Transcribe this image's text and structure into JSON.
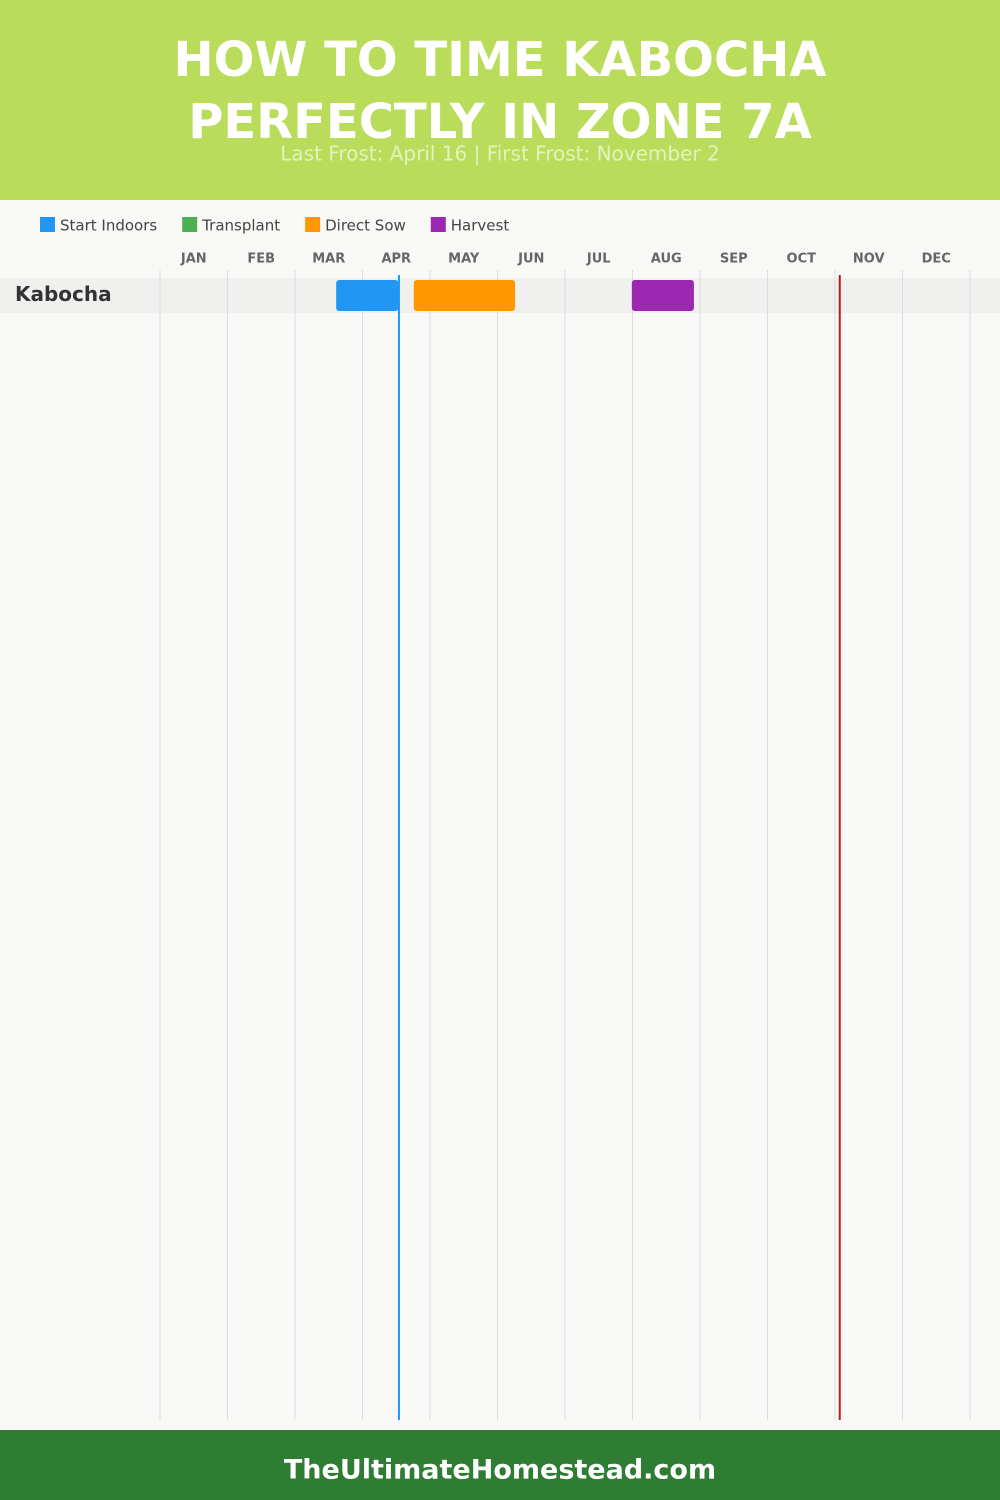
{
  "chart_data": {
    "type": "gantt",
    "title": "HOW TO TIME KABOCHA PERFECTLY IN ZONE 7A",
    "subtitle": "Last Frost: April 16 | First Frost: November 2",
    "categories": [
      "Kabocha"
    ],
    "xlim": [
      0,
      12
    ],
    "xticks": [
      {
        "value": 0,
        "label": "JAN"
      },
      {
        "value": 1,
        "label": "FEB"
      },
      {
        "value": 2,
        "label": "MAR"
      },
      {
        "value": 3,
        "label": "APR"
      },
      {
        "value": 4,
        "label": "MAY"
      },
      {
        "value": 5,
        "label": "JUN"
      },
      {
        "value": 6,
        "label": "JUL"
      },
      {
        "value": 7,
        "label": "AUG"
      },
      {
        "value": 8,
        "label": "SEP"
      },
      {
        "value": 9,
        "label": "OCT"
      },
      {
        "value": 10,
        "label": "NOV"
      },
      {
        "value": 11,
        "label": "DEC"
      }
    ],
    "grid": true,
    "series": [
      {
        "name": "Start Indoors",
        "color": "#2196f3",
        "values": [
          [
            2.61,
            3.53
          ]
        ]
      },
      {
        "name": "Transplant",
        "color": "#4caf50",
        "values": [
          null
        ]
      },
      {
        "name": "Direct Sow",
        "color": "#ff9800",
        "values": [
          [
            3.76,
            5.26
          ]
        ]
      },
      {
        "name": "Harvest",
        "color": "#9c27b0",
        "values": [
          [
            6.99,
            7.91
          ]
        ]
      }
    ],
    "frost_lines": [
      {
        "value": 3.54,
        "color": "#2196f3"
      },
      {
        "value": 10.07,
        "color": "#b71c1c"
      }
    ]
  },
  "footer": "TheUltimateHomestead.com"
}
